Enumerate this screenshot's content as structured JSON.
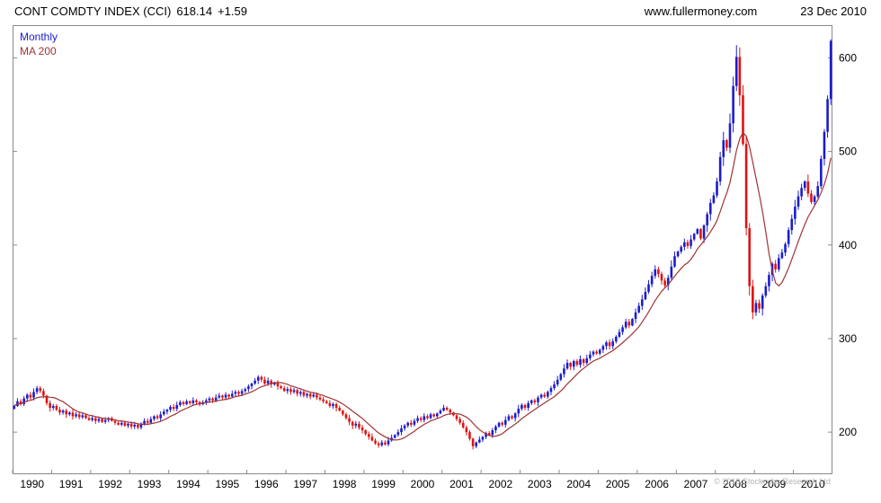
{
  "header": {
    "instrument": "CONT COMDTY INDEX (CCI)",
    "last_price": "618.14",
    "change": "+1.59",
    "website": "www.fullermoney.com",
    "date": "23 Dec 2010"
  },
  "legend": {
    "timeframe": "Monthly",
    "ma": "MA 200"
  },
  "footer": {
    "copyright": "© 2010 Stockcube Research Ltd"
  },
  "chart_data": {
    "type": "candlestick",
    "title": "CONT COMDTY INDEX (CCI)",
    "timeframe": "Monthly",
    "overlay": "MA 200",
    "ma_window_months": 10,
    "grid": false,
    "legend_position": "top-left",
    "x_start_year": 1990,
    "x_ticks": [
      1990,
      1991,
      1992,
      1993,
      1994,
      1995,
      1996,
      1997,
      1998,
      1999,
      2000,
      2001,
      2002,
      2003,
      2004,
      2005,
      2006,
      2007,
      2008,
      2009,
      2010
    ],
    "y_ticks": [
      200,
      300,
      400,
      500,
      600
    ],
    "y_range": [
      155,
      635
    ],
    "last_price": 618.14,
    "change": 1.59,
    "monthly_closes": [
      228,
      233,
      230,
      236,
      240,
      237,
      243,
      247,
      244,
      239,
      231,
      226,
      228,
      224,
      221,
      223,
      219,
      221,
      217,
      219,
      216,
      218,
      215,
      213,
      215,
      212,
      214,
      211,
      213,
      215,
      212,
      210,
      208,
      210,
      207,
      209,
      206,
      208,
      205,
      209,
      212,
      210,
      214,
      217,
      215,
      219,
      222,
      224,
      227,
      225,
      229,
      232,
      230,
      233,
      231,
      234,
      232,
      230,
      232,
      234,
      236,
      234,
      237,
      239,
      237,
      240,
      238,
      241,
      243,
      241,
      244,
      246,
      249,
      252,
      255,
      259,
      256,
      252,
      255,
      251,
      253,
      249,
      247,
      244,
      246,
      243,
      245,
      241,
      243,
      239,
      241,
      238,
      240,
      237,
      235,
      233,
      231,
      228,
      230,
      226,
      223,
      219,
      215,
      211,
      207,
      209,
      205,
      202,
      198,
      195,
      191,
      188,
      186,
      189,
      187,
      191,
      194,
      197,
      200,
      204,
      207,
      210,
      208,
      212,
      215,
      213,
      217,
      215,
      219,
      217,
      220,
      223,
      226,
      224,
      221,
      218,
      214,
      210,
      205,
      200,
      193,
      185,
      189,
      192,
      195,
      199,
      197,
      202,
      206,
      210,
      208,
      213,
      217,
      215,
      220,
      225,
      229,
      226,
      231,
      234,
      232,
      237,
      240,
      238,
      243,
      247,
      251,
      256,
      262,
      268,
      274,
      270,
      276,
      272,
      278,
      274,
      279,
      283,
      286,
      284,
      288,
      292,
      296,
      292,
      297,
      302,
      307,
      312,
      318,
      314,
      321,
      328,
      335,
      342,
      350,
      358,
      367,
      374,
      369,
      362,
      357,
      365,
      377,
      388,
      393,
      398,
      403,
      399,
      406,
      412,
      417,
      407,
      421,
      433,
      445,
      453,
      468,
      494,
      512,
      504,
      530,
      570,
      601,
      560,
      508,
      418,
      356,
      328,
      338,
      332,
      346,
      356,
      368,
      380,
      374,
      386,
      392,
      401,
      416,
      428,
      441,
      452,
      461,
      468,
      455,
      446,
      452,
      463,
      492,
      521,
      556,
      618.14
    ],
    "colors": {
      "up": "#1c1ccc",
      "down": "#e01212",
      "ma": "#a03333",
      "border": "#8a8a8a",
      "axis_text": "#000000"
    }
  }
}
